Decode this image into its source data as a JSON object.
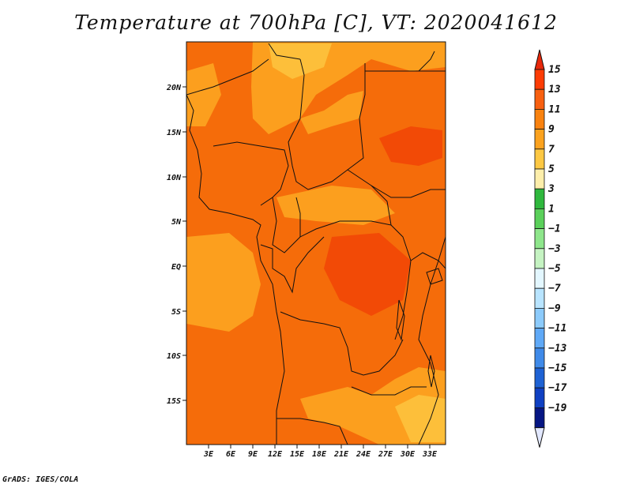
{
  "title": "Temperature at 700hPa [C], VT: 2020041612",
  "credit": "GrADS: IGES/COLA",
  "map": {
    "lon_labels": [
      "3E",
      "6E",
      "9E",
      "12E",
      "15E",
      "18E",
      "21E",
      "24E",
      "27E",
      "30E",
      "33E"
    ],
    "lat_labels": [
      "20N",
      "15N",
      "10N",
      "5N",
      "EQ",
      "5S",
      "10S",
      "15S"
    ],
    "field_colors": {
      "dominant": "#f56c0a",
      "warmer": "#f24a06",
      "cooler": "#fc9f1e",
      "coolest": "#fdbf3a"
    }
  },
  "colorbar": {
    "labels": [
      "15",
      "13",
      "11",
      "9",
      "7",
      "5",
      "3",
      "1",
      "−1",
      "−3",
      "−5",
      "−7",
      "−9",
      "−11",
      "−13",
      "−15",
      "−17",
      "−19"
    ],
    "colors": [
      "#fd3c05",
      "#f86010",
      "#f9820f",
      "#fba21e",
      "#fdc843",
      "#fdeeaa",
      "#2fb83d",
      "#5ad05a",
      "#8ee68b",
      "#c5f3c2",
      "#e3f7ff",
      "#b8e4ff",
      "#8ccbfc",
      "#5fa9f7",
      "#3f8ae9",
      "#1e62d4",
      "#0f40c2",
      "#061683"
    ],
    "top_triangle_color": "#e8280a",
    "bottom_triangle_color": "#e2e8ff"
  }
}
